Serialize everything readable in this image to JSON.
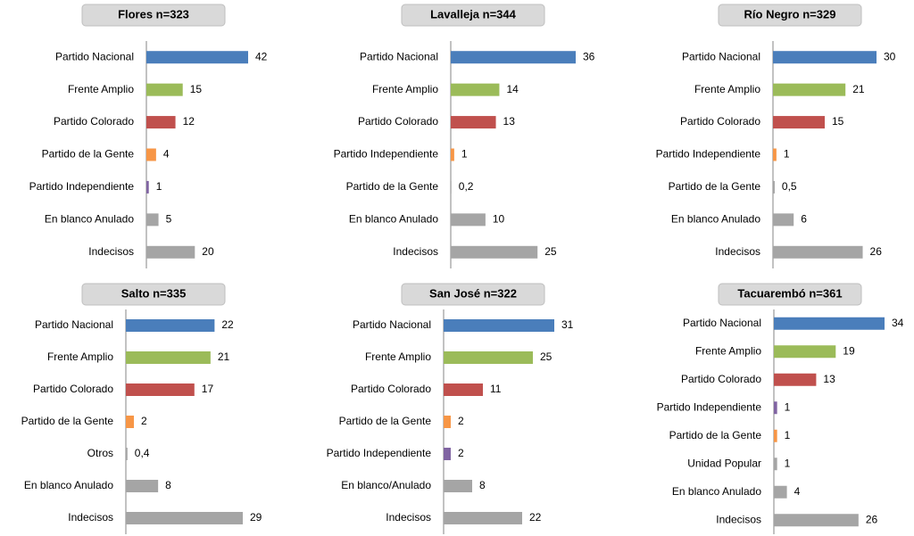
{
  "chart_data": [
    {
      "type": "bar",
      "title": "Flores n=323",
      "categories": [
        "Partido Nacional",
        "Frente Amplio",
        "Partido Colorado",
        "Partido de la Gente",
        "Partido Independiente",
        "En blanco Anulado",
        "Indecisos"
      ],
      "values": [
        42,
        15,
        12,
        4,
        1,
        5,
        20
      ],
      "colors": [
        "#4a7ebb",
        "#9bbb59",
        "#c0504d",
        "#f79646",
        "#8064a2",
        "#a5a5a5",
        "#a5a5a5"
      ]
    },
    {
      "type": "bar",
      "title": "Lavalleja n=344",
      "categories": [
        "Partido Nacional",
        "Frente Amplio",
        "Partido Colorado",
        "Partido Independiente",
        "Partido de la Gente",
        "En blanco Anulado",
        "Indecisos"
      ],
      "values": [
        36,
        14,
        13,
        1,
        0.2,
        10,
        25
      ],
      "value_labels": [
        "36",
        "14",
        "13",
        "1",
        "0,2",
        "10",
        "25"
      ],
      "colors": [
        "#4a7ebb",
        "#9bbb59",
        "#c0504d",
        "#f79646",
        "#a5a5a5",
        "#a5a5a5",
        "#a5a5a5"
      ]
    },
    {
      "type": "bar",
      "title": "Río Negro n=329",
      "categories": [
        "Partido Nacional",
        "Frente Amplio",
        "Partido Colorado",
        "Partido Independiente",
        "Partido de la Gente",
        "En blanco Anulado",
        "Indecisos"
      ],
      "values": [
        30,
        21,
        15,
        1,
        0.5,
        6,
        26
      ],
      "value_labels": [
        "30",
        "21",
        "15",
        "1",
        "0,5",
        "6",
        "26"
      ],
      "colors": [
        "#4a7ebb",
        "#9bbb59",
        "#c0504d",
        "#f79646",
        "#a5a5a5",
        "#a5a5a5",
        "#a5a5a5"
      ]
    },
    {
      "type": "bar",
      "title": "Salto n=335",
      "categories": [
        "Partido Nacional",
        "Frente Amplio",
        "Partido Colorado",
        "Partido de la Gente",
        "Otros",
        "En blanco Anulado",
        "Indecisos"
      ],
      "values": [
        22,
        21,
        17,
        2,
        0.4,
        8,
        29
      ],
      "value_labels": [
        "22",
        "21",
        "17",
        "2",
        "0,4",
        "8",
        "29"
      ],
      "colors": [
        "#4a7ebb",
        "#9bbb59",
        "#c0504d",
        "#f79646",
        "#a5a5a5",
        "#a5a5a5",
        "#a5a5a5"
      ]
    },
    {
      "type": "bar",
      "title": "San José n=322",
      "categories": [
        "Partido Nacional",
        "Frente Amplio",
        "Partido Colorado",
        "Partido de la Gente",
        "Partido Independiente",
        "En blanco/Anulado",
        "Indecisos"
      ],
      "values": [
        31,
        25,
        11,
        2,
        2,
        8,
        22
      ],
      "colors": [
        "#4a7ebb",
        "#9bbb59",
        "#c0504d",
        "#f79646",
        "#8064a2",
        "#a5a5a5",
        "#a5a5a5"
      ]
    },
    {
      "type": "bar",
      "title": "Tacuarembó n=361",
      "categories": [
        "Partido Nacional",
        "Frente Amplio",
        "Partido Colorado",
        "Partido Independiente",
        "Partido de la Gente",
        "Unidad Popular",
        "En blanco Anulado",
        "Indecisos"
      ],
      "values": [
        34,
        19,
        13,
        1,
        1,
        1,
        4,
        26
      ],
      "colors": [
        "#4a7ebb",
        "#9bbb59",
        "#c0504d",
        "#8064a2",
        "#f79646",
        "#a5a5a5",
        "#a5a5a5",
        "#a5a5a5"
      ]
    }
  ]
}
